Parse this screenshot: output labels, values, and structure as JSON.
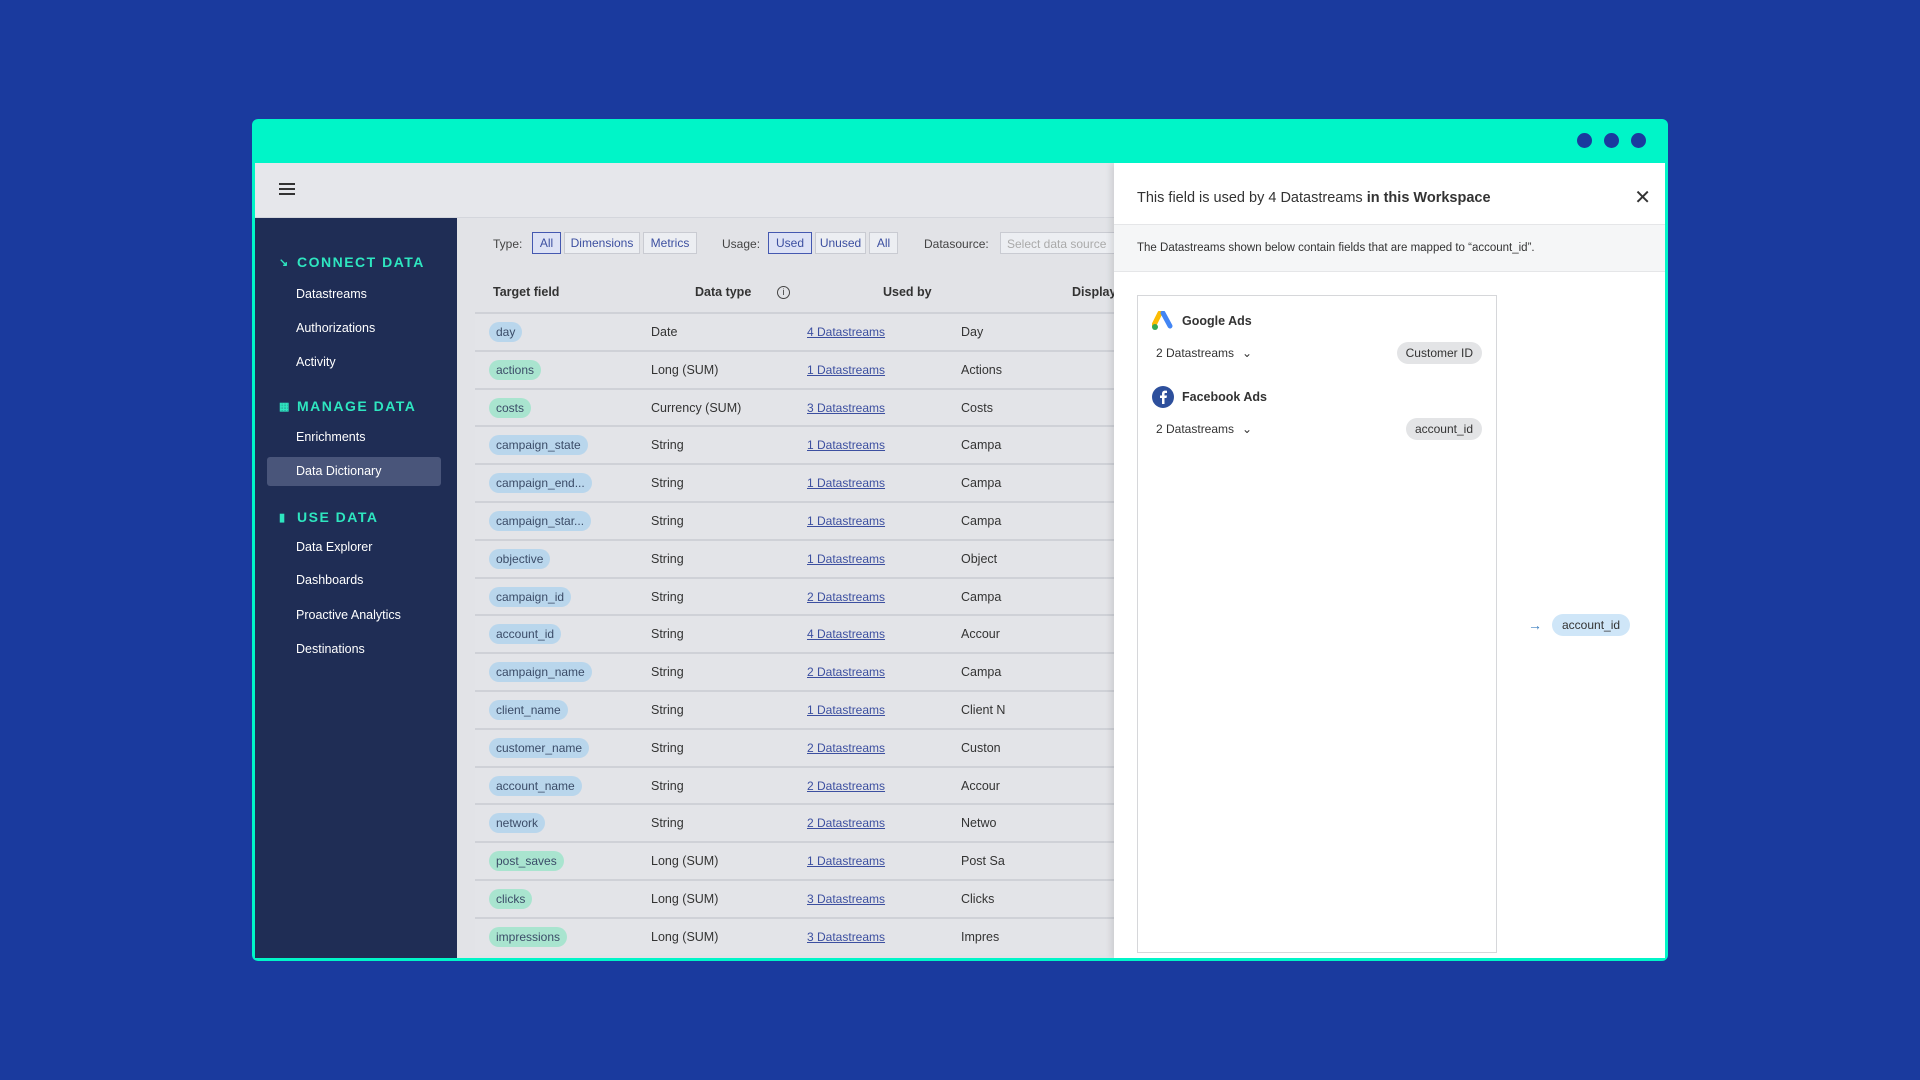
{
  "sidebar": {
    "sections": [
      {
        "title": "CONNECT DATA",
        "icon": "arrow-down-right-icon",
        "items": [
          "Datastreams",
          "Authorizations",
          "Activity"
        ]
      },
      {
        "title": "MANAGE DATA",
        "icon": "grid-icon",
        "items": [
          "Enrichments",
          "Data Dictionary"
        ]
      },
      {
        "title": "USE DATA",
        "icon": "bar-chart-icon",
        "items": [
          "Data Explorer",
          "Dashboards",
          "Proactive Analytics",
          "Destinations"
        ]
      }
    ],
    "selected": "Data Dictionary"
  },
  "filters": {
    "type_label": "Type:",
    "type_options": [
      "All",
      "Dimensions",
      "Metrics"
    ],
    "type_selected": "All",
    "usage_label": "Usage:",
    "usage_options": [
      "Used",
      "Unused",
      "All"
    ],
    "usage_selected": "Used",
    "datasource_label": "Datasource:",
    "datasource_placeholder": "Select data source"
  },
  "table": {
    "headers": [
      "Target field",
      "Data type",
      "Used by",
      "Display"
    ],
    "rows": [
      [
        "day",
        "Date",
        "4 Datastreams",
        "Day",
        "d"
      ],
      [
        "actions",
        "Long (SUM)",
        "1 Datastreams",
        "Actions",
        "m"
      ],
      [
        "costs",
        "Currency (SUM)",
        "3 Datastreams",
        "Costs",
        "m"
      ],
      [
        "campaign_state",
        "String",
        "1 Datastreams",
        "Campa",
        "d"
      ],
      [
        "campaign_end...",
        "String",
        "1 Datastreams",
        "Campa",
        "d"
      ],
      [
        "campaign_star...",
        "String",
        "1 Datastreams",
        "Campa",
        "d"
      ],
      [
        "objective",
        "String",
        "1 Datastreams",
        "Object",
        "d"
      ],
      [
        "campaign_id",
        "String",
        "2 Datastreams",
        "Campa",
        "d"
      ],
      [
        "account_id",
        "String",
        "4 Datastreams",
        "Accour",
        "d"
      ],
      [
        "campaign_name",
        "String",
        "2 Datastreams",
        "Campa",
        "d"
      ],
      [
        "client_name",
        "String",
        "1 Datastreams",
        "Client N",
        "d"
      ],
      [
        "customer_name",
        "String",
        "2 Datastreams",
        "Custon",
        "d"
      ],
      [
        "account_name",
        "String",
        "2 Datastreams",
        "Accour",
        "d"
      ],
      [
        "network",
        "String",
        "2 Datastreams",
        "Netwo",
        "d"
      ],
      [
        "post_saves",
        "Long (SUM)",
        "1 Datastreams",
        "Post Sa",
        "m"
      ],
      [
        "clicks",
        "Long (SUM)",
        "3 Datastreams",
        "Clicks",
        "m"
      ],
      [
        "impressions",
        "Long (SUM)",
        "3 Datastreams",
        "Impres",
        "m"
      ]
    ]
  },
  "panel": {
    "title_a": "This field is used by 4 Datastreams",
    "title_b": "in this Workspace",
    "subtitle": "The Datastreams shown below contain fields that are mapped to “account_id”.",
    "sources": [
      {
        "name": "Google Ads",
        "count": "2 Datastreams",
        "field": "Customer ID"
      },
      {
        "name": "Facebook Ads",
        "count": "2 Datastreams",
        "field": "account_id"
      }
    ],
    "target_field": "account_id"
  },
  "colors": {
    "accent": "#00f5c8",
    "sidebar": "#1f2d55",
    "background": "#1a3a9e",
    "dimension": "#b9d6ec",
    "metric": "#a9e4cf"
  }
}
